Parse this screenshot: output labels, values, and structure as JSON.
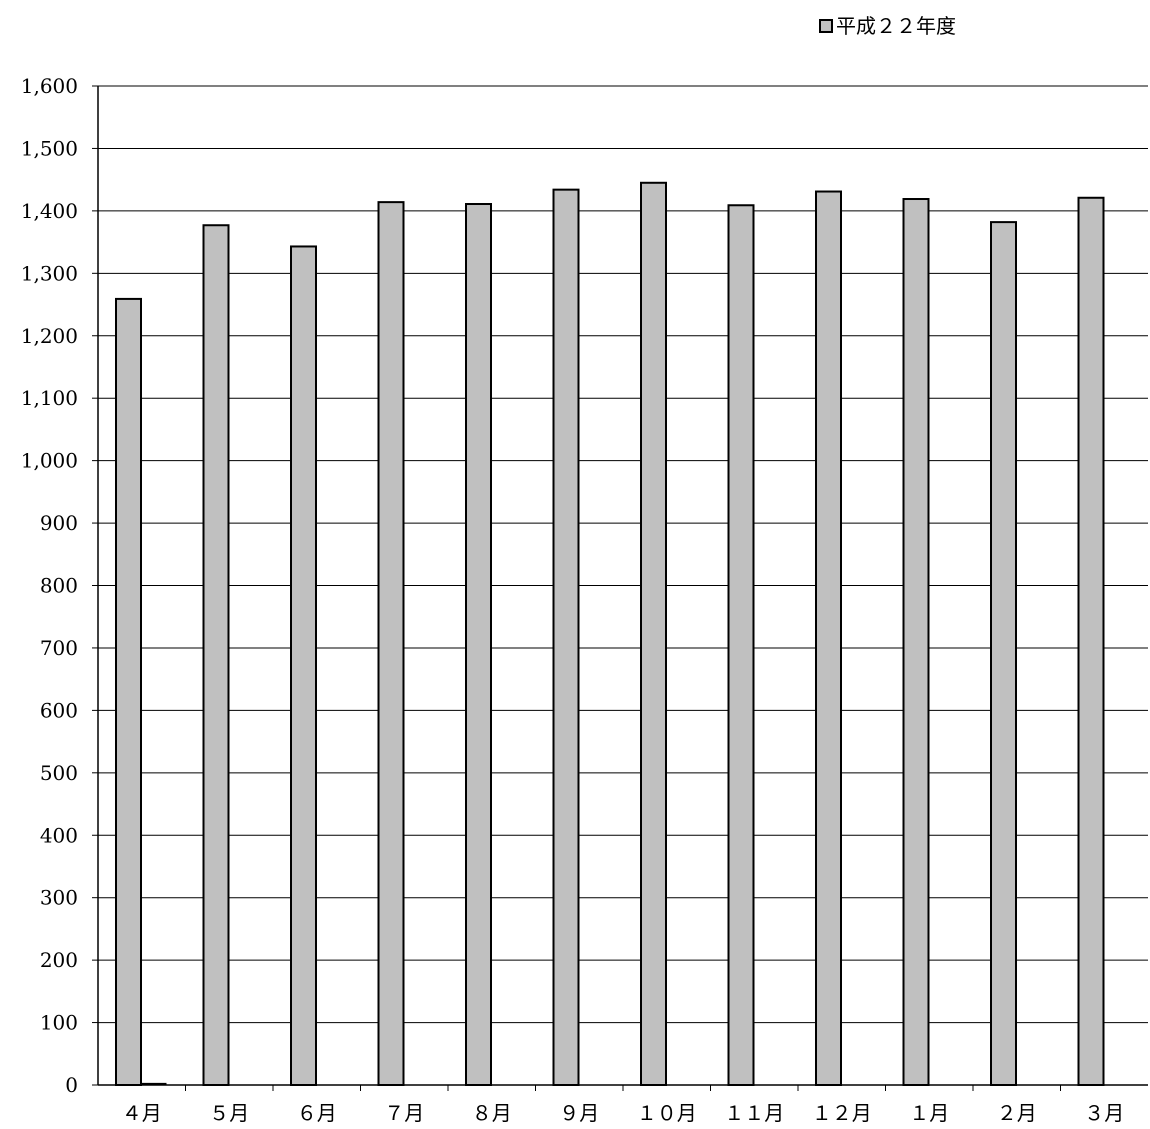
{
  "chart_data": {
    "type": "bar",
    "categories": [
      "４月",
      "５月",
      "６月",
      "７月",
      "８月",
      "９月",
      "１０月",
      "１１月",
      "１２月",
      "１月",
      "２月",
      "３月"
    ],
    "series": [
      {
        "name": "平成２２年度",
        "values": [
          1259,
          1377,
          1343,
          1414,
          1411,
          1434,
          1445,
          1409,
          1431,
          1419,
          1382,
          1421
        ]
      }
    ],
    "secondary_values": [
      1,
      0,
      0,
      0,
      0,
      0,
      0,
      0,
      0,
      0,
      0,
      0
    ],
    "y_ticks": [
      "0",
      "100",
      "200",
      "300",
      "400",
      "500",
      "600",
      "700",
      "800",
      "900",
      "1,000",
      "1,100",
      "1,200",
      "1,300",
      "1,400",
      "1,500",
      "1,600"
    ],
    "ylim": [
      0,
      1600
    ],
    "grid": true,
    "legend_position": "top-right",
    "colors": {
      "bar_fill": "#c0c0c0",
      "bar_stroke": "#000000",
      "grid": "#000000",
      "axis": "#000000"
    }
  }
}
